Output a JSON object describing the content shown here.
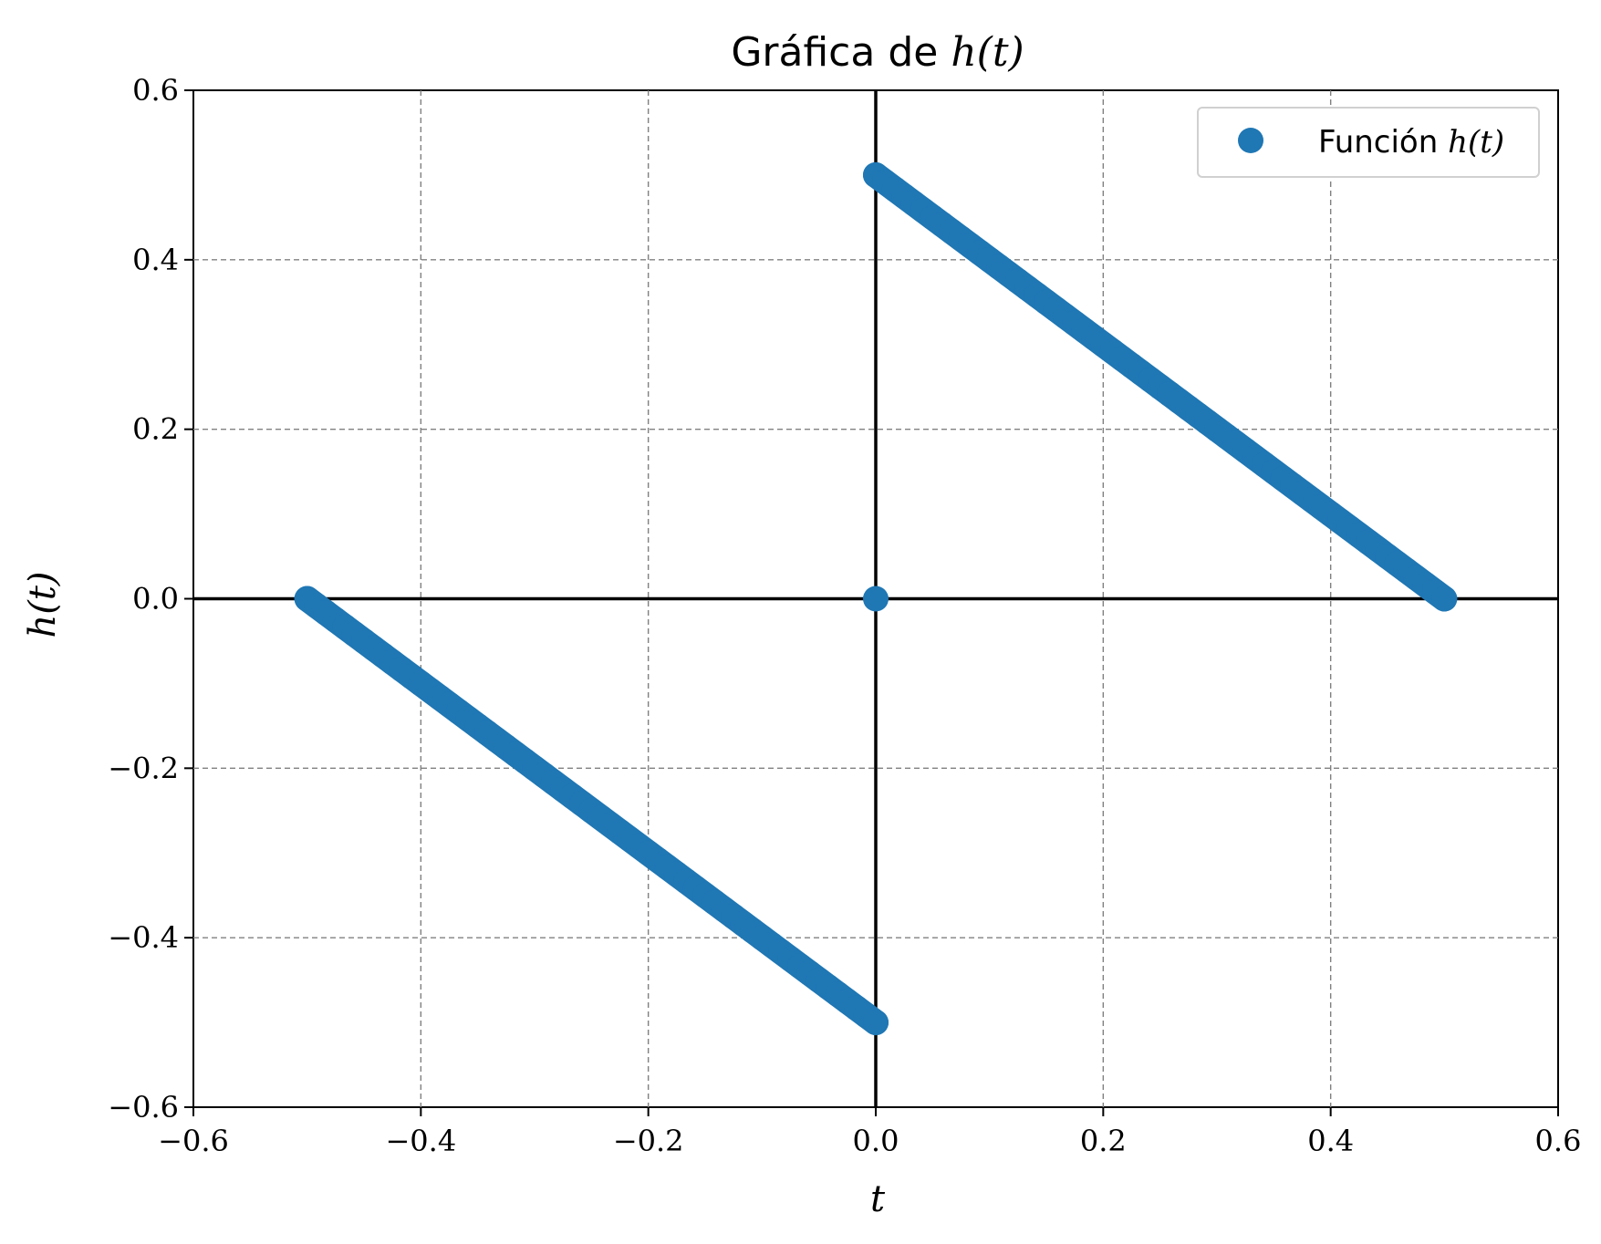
{
  "chart_data": {
    "type": "scatter",
    "title": {
      "prefix": "Gráfica de ",
      "math": "h(t)"
    },
    "xlabel": "t",
    "ylabel": "h(t)",
    "xlim": [
      -0.6,
      0.6
    ],
    "ylim": [
      -0.6,
      0.6
    ],
    "xticks": [
      -0.6,
      -0.4,
      -0.2,
      0.0,
      0.2,
      0.4,
      0.6
    ],
    "yticks": [
      -0.6,
      -0.4,
      -0.2,
      0.0,
      0.2,
      0.4,
      0.6
    ],
    "xtick_labels": [
      "−0.6",
      "−0.4",
      "−0.2",
      "0.0",
      "0.2",
      "0.4",
      "0.6"
    ],
    "ytick_labels": [
      "−0.6",
      "−0.4",
      "−0.2",
      "0.0",
      "0.2",
      "0.4",
      "0.6"
    ],
    "grid": true,
    "zero_axes": true,
    "legend_position": "top-right",
    "series": [
      {
        "name": "Función h(t)",
        "legend_prefix": "Función ",
        "legend_math": "h(t)",
        "color": "#1f77b4",
        "segments": [
          {
            "t_start": -0.5,
            "t_end": 0.0,
            "h_start": 0.0,
            "h_end": -0.5
          },
          {
            "t_start": 0.0,
            "t_end": 0.5,
            "h_start": 0.5,
            "h_end": 0.0
          }
        ],
        "points": [
          {
            "t": 0.0,
            "h": 0.0
          }
        ]
      }
    ]
  }
}
